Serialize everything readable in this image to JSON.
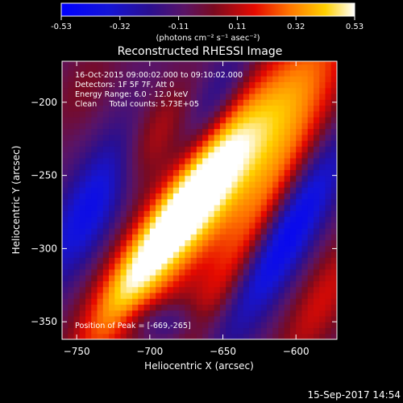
{
  "chart_data": {
    "type": "heatmap",
    "title": "Reconstructed RHESSI Image",
    "xlabel": "Heliocentric X (arcsec)",
    "ylabel": "Heliocentric Y (arcsec)",
    "xlim": [
      -760,
      -572
    ],
    "ylim": [
      -362,
      -172
    ],
    "x_ticks": [
      -750,
      -700,
      -650,
      -600
    ],
    "y_ticks": [
      -200,
      -250,
      -300,
      -350
    ],
    "colorbar": {
      "ticks": [
        "-0.53",
        "-0.32",
        "-0.11",
        "0.11",
        "0.32",
        "0.53"
      ],
      "min": -0.53,
      "max": 0.53,
      "unit_label": "(photons cm⁻² s⁻¹ asec⁻²)"
    },
    "annotations": [
      "16-Oct-2015 09:00:02.000 to 09:10:02.000",
      "Detectors: 1F 5F 7F, Att 0",
      "Energy Range: 6.0 - 12.0 keV",
      "Clean     Total counts: 5.73E+05"
    ],
    "peak_label": "Position of Peak = [-669,-265]",
    "peak": {
      "x": -669,
      "y": -265
    }
  },
  "footer_timestamp": "15-Sep-2017 14:54",
  "colors": {
    "background": "#000000",
    "text": "#ffffff"
  }
}
